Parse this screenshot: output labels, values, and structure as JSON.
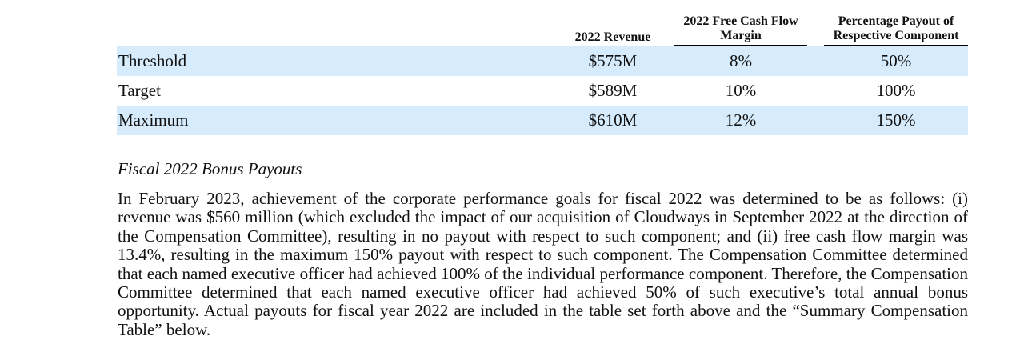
{
  "table": {
    "headers": {
      "revenue": "2022 Revenue",
      "fcf_line1": "2022 Free Cash Flow",
      "fcf_line2": "Margin",
      "payout_line1": "Percentage Payout of",
      "payout_line2": "Respective Component"
    },
    "rows": [
      {
        "label": "Threshold",
        "revenue": "$575M",
        "fcf_margin": "8%",
        "payout": "50%"
      },
      {
        "label": "Target",
        "revenue": "$589M",
        "fcf_margin": "10%",
        "payout": "100%"
      },
      {
        "label": "Maximum",
        "revenue": "$610M",
        "fcf_margin": "12%",
        "payout": "150%"
      }
    ]
  },
  "section": {
    "title": "Fiscal 2022 Bonus Payouts",
    "paragraph": "In February 2023, achievement of the corporate performance goals for fiscal 2022 was determined to be as follows: (i) revenue was $560 million (which excluded the impact of our acquisition of Cloudways in September 2022 at the direction of the Compensation Committee), resulting in no payout with respect to such component; and (ii) free cash flow margin was 13.4%, resulting in the maximum 150% payout with respect to such component. The Compensation Committee determined that each named executive officer had achieved 100% of the individual performance component. Therefore, the Compensation Committee determined that each named executive officer had achieved 50% of such executive’s total annual bonus opportunity. Actual payouts for fiscal year 2022 are included in the table set forth above and the “Summary Compensation Table” below."
  }
}
